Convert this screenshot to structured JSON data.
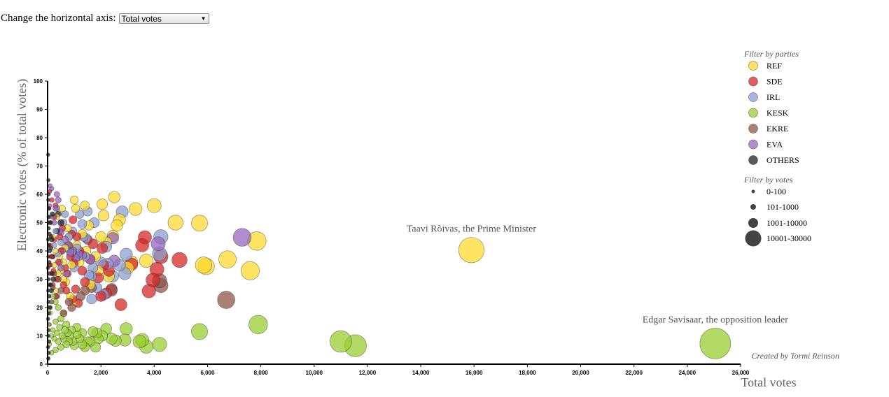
{
  "control": {
    "label": "Change the horizontal axis:",
    "selected": "Total votes"
  },
  "colors": {
    "REF": "#FFD92F",
    "SDE": "#D62728",
    "IRL": "#8C9DD1",
    "KESK": "#9ACD32",
    "EKRE": "#8C564B",
    "EVA": "#9467BD",
    "OTHERS": "#222222"
  },
  "chart_data": {
    "type": "scatter",
    "xlabel": "Total votes",
    "ylabel": "Electronic votes (% of total votes)",
    "xlim": [
      0,
      26000
    ],
    "ylim": [
      0,
      100
    ],
    "xticks": [
      0,
      2000,
      4000,
      6000,
      8000,
      10000,
      12000,
      14000,
      16000,
      18000,
      20000,
      22000,
      24000,
      26000
    ],
    "xtick_labels": [
      "0",
      "2,000",
      "4,000",
      "6,000",
      "8,000",
      "10,000",
      "12,000",
      "14,000",
      "16,000",
      "18,000",
      "20,000",
      "22,000",
      "24,000",
      "26,000"
    ],
    "yticks": [
      0,
      10,
      20,
      30,
      40,
      50,
      60,
      70,
      80,
      90,
      100
    ],
    "ytick_labels": [
      "0",
      "10",
      "20",
      "30",
      "40",
      "50",
      "60",
      "70",
      "80",
      "90",
      "100"
    ],
    "annotations": [
      {
        "text": "Taavi Rõivas, the Prime Minister",
        "x": 15900,
        "y": 40.3
      },
      {
        "text": "Edgar Savisaar, the opposition leader",
        "x": 25050,
        "y": 7.3
      }
    ],
    "credit": "Created by Tormi Reinson",
    "legend_parties_title": "Filter by parties",
    "parties": [
      "REF",
      "SDE",
      "IRL",
      "KESK",
      "EKRE",
      "EVA",
      "OTHERS"
    ],
    "legend_votes_title": "Filter by votes",
    "vote_ranges": [
      "0-100",
      "101-1000",
      "1001-10000",
      "10001-30000"
    ],
    "series": [
      {
        "name": "REF",
        "points": [
          [
            15900,
            40.3
          ],
          [
            7850,
            43.5
          ],
          [
            7600,
            33
          ],
          [
            6750,
            37
          ],
          [
            5950,
            34.5
          ],
          [
            5850,
            35
          ],
          [
            5700,
            49.8
          ],
          [
            4800,
            50
          ],
          [
            4000,
            56
          ],
          [
            3700,
            36.5
          ],
          [
            3300,
            54.8
          ],
          [
            3150,
            36
          ],
          [
            2600,
            49
          ],
          [
            2500,
            59
          ],
          [
            2050,
            56.5
          ],
          [
            2100,
            52.5
          ],
          [
            2000,
            45
          ],
          [
            2450,
            45.3
          ],
          [
            1550,
            49
          ],
          [
            1400,
            56
          ],
          [
            1050,
            55
          ],
          [
            1000,
            58
          ],
          [
            800,
            45
          ],
          [
            1800,
            38
          ],
          [
            2300,
            31
          ],
          [
            3000,
            34
          ],
          [
            900,
            35
          ],
          [
            700,
            29
          ],
          [
            600,
            30
          ],
          [
            1200,
            36
          ],
          [
            1600,
            28
          ],
          [
            500,
            33
          ],
          [
            400,
            32
          ],
          [
            300,
            40
          ],
          [
            1300,
            46
          ],
          [
            2700,
            51
          ],
          [
            450,
            38
          ],
          [
            650,
            41
          ],
          [
            850,
            24
          ],
          [
            350,
            52
          ],
          [
            550,
            55
          ],
          [
            750,
            48
          ],
          [
            1100,
            42
          ],
          [
            1450,
            40
          ],
          [
            1900,
            33
          ],
          [
            950,
            22
          ],
          [
            2200,
            43
          ],
          [
            300,
            26
          ],
          [
            250,
            35
          ],
          [
            600,
            36
          ],
          [
            200,
            45
          ]
        ]
      },
      {
        "name": "SDE",
        "points": [
          [
            4950,
            36.8
          ],
          [
            4250,
            38
          ],
          [
            4100,
            33.5
          ],
          [
            3950,
            29.7
          ],
          [
            3800,
            25.8
          ],
          [
            3650,
            44.8
          ],
          [
            3550,
            42
          ],
          [
            3150,
            35.3
          ],
          [
            2750,
            21
          ],
          [
            2400,
            26.5
          ],
          [
            2200,
            25
          ],
          [
            2100,
            35
          ],
          [
            2050,
            41
          ],
          [
            1900,
            30.5
          ],
          [
            1700,
            42.5
          ],
          [
            1400,
            29
          ],
          [
            1150,
            21.5
          ],
          [
            1050,
            26.5
          ],
          [
            950,
            23
          ],
          [
            1000,
            35.5
          ],
          [
            1500,
            44
          ],
          [
            1600,
            37
          ],
          [
            1300,
            33
          ],
          [
            1200,
            40
          ],
          [
            950,
            51
          ],
          [
            800,
            42
          ],
          [
            750,
            32
          ],
          [
            700,
            26
          ],
          [
            600,
            28
          ],
          [
            550,
            48
          ],
          [
            450,
            45
          ],
          [
            400,
            36
          ],
          [
            350,
            30
          ],
          [
            350,
            24
          ],
          [
            300,
            56
          ],
          [
            260,
            44
          ],
          [
            220,
            33
          ],
          [
            200,
            28
          ],
          [
            160,
            58
          ],
          [
            140,
            38
          ],
          [
            120,
            50
          ],
          [
            100,
            42
          ],
          [
            90,
            35
          ],
          [
            80,
            61
          ],
          [
            60,
            55
          ],
          [
            40,
            32
          ],
          [
            650,
            34
          ],
          [
            500,
            40
          ],
          [
            1100,
            45
          ],
          [
            2300,
            33
          ],
          [
            2000,
            24
          ],
          [
            850,
            38
          ],
          [
            900,
            46
          ],
          [
            250,
            52
          ]
        ]
      },
      {
        "name": "IRL",
        "points": [
          [
            4200,
            39
          ],
          [
            4250,
            45
          ],
          [
            2950,
            38.8
          ],
          [
            2900,
            32
          ],
          [
            2800,
            53.8
          ],
          [
            2700,
            35
          ],
          [
            2450,
            31
          ],
          [
            2250,
            35.5
          ],
          [
            2200,
            41.5
          ],
          [
            2100,
            24.5
          ],
          [
            1750,
            50
          ],
          [
            1700,
            34
          ],
          [
            1650,
            23
          ],
          [
            1550,
            31.5
          ],
          [
            1500,
            54
          ],
          [
            1450,
            44.5
          ],
          [
            1400,
            38
          ],
          [
            1350,
            45
          ],
          [
            1300,
            49.5
          ],
          [
            1200,
            53
          ],
          [
            1100,
            41
          ],
          [
            1000,
            34
          ],
          [
            950,
            47
          ],
          [
            900,
            39.5
          ],
          [
            850,
            40
          ],
          [
            700,
            41
          ],
          [
            650,
            53
          ],
          [
            500,
            43
          ],
          [
            450,
            36
          ],
          [
            400,
            39
          ],
          [
            300,
            47
          ],
          [
            350,
            55
          ],
          [
            250,
            42
          ],
          [
            1650,
            31
          ],
          [
            1850,
            27
          ],
          [
            2000,
            36
          ],
          [
            600,
            50
          ],
          [
            1150,
            38
          ],
          [
            800,
            45
          ]
        ]
      },
      {
        "name": "KESK",
        "points": [
          [
            25050,
            7.3
          ],
          [
            11550,
            6.5
          ],
          [
            11000,
            8
          ],
          [
            7900,
            14
          ],
          [
            5700,
            11.5
          ],
          [
            4200,
            7
          ],
          [
            3700,
            6.2
          ],
          [
            3550,
            8.5
          ],
          [
            3450,
            8
          ],
          [
            2950,
            12.5
          ],
          [
            2900,
            8.5
          ],
          [
            2550,
            8.3
          ],
          [
            2200,
            12.5
          ],
          [
            2050,
            10
          ],
          [
            1850,
            11
          ],
          [
            1800,
            6
          ],
          [
            1700,
            11.5
          ],
          [
            1600,
            8
          ],
          [
            1500,
            8
          ],
          [
            1400,
            6
          ],
          [
            1300,
            11
          ],
          [
            1200,
            9
          ],
          [
            1100,
            10.5
          ],
          [
            1000,
            6.5
          ],
          [
            950,
            8
          ],
          [
            900,
            12
          ],
          [
            850,
            10
          ],
          [
            800,
            8
          ],
          [
            750,
            11
          ],
          [
            700,
            7
          ],
          [
            650,
            12
          ],
          [
            600,
            9
          ],
          [
            550,
            10
          ],
          [
            500,
            6
          ],
          [
            450,
            13
          ],
          [
            400,
            8
          ],
          [
            350,
            11
          ],
          [
            300,
            15
          ],
          [
            250,
            9
          ],
          [
            200,
            12
          ],
          [
            150,
            10
          ],
          [
            100,
            18
          ],
          [
            80,
            7
          ],
          [
            60,
            14
          ],
          [
            40,
            19
          ],
          [
            30,
            2
          ],
          [
            600,
            18
          ],
          [
            500,
            16
          ],
          [
            400,
            20
          ],
          [
            300,
            22
          ],
          [
            200,
            24
          ],
          [
            1100,
            13
          ],
          [
            1900,
            9
          ],
          [
            700,
            14
          ],
          [
            300,
            5
          ],
          [
            150,
            4
          ],
          [
            1300,
            7
          ],
          [
            2400,
            9
          ]
        ]
      },
      {
        "name": "EKRE",
        "points": [
          [
            6700,
            22.7
          ],
          [
            4250,
            27.8
          ],
          [
            4200,
            29.5
          ],
          [
            2400,
            26
          ],
          [
            1650,
            27
          ],
          [
            1400,
            26
          ],
          [
            1250,
            24
          ],
          [
            900,
            20
          ],
          [
            800,
            22
          ],
          [
            600,
            18
          ],
          [
            500,
            26
          ],
          [
            400,
            30
          ],
          [
            300,
            24
          ],
          [
            250,
            32
          ],
          [
            200,
            27
          ],
          [
            150,
            22
          ],
          [
            100,
            20
          ]
        ]
      },
      {
        "name": "EVA",
        "points": [
          [
            7300,
            44.8
          ],
          [
            4150,
            42.5
          ],
          [
            2500,
            36.5
          ],
          [
            2450,
            44.5
          ],
          [
            1600,
            37
          ],
          [
            1300,
            38.5
          ],
          [
            1150,
            39
          ],
          [
            1050,
            37.5
          ],
          [
            950,
            40
          ],
          [
            850,
            39.5
          ],
          [
            750,
            42
          ],
          [
            650,
            44
          ],
          [
            550,
            40
          ],
          [
            500,
            46.5
          ],
          [
            450,
            47
          ],
          [
            400,
            58
          ],
          [
            350,
            60
          ],
          [
            300,
            55
          ],
          [
            250,
            50
          ],
          [
            200,
            52
          ],
          [
            150,
            62
          ],
          [
            100,
            63
          ],
          [
            80,
            56
          ],
          [
            60,
            52
          ],
          [
            500,
            34
          ],
          [
            700,
            32
          ]
        ]
      },
      {
        "name": "OTHERS",
        "points": [
          [
            20,
            74
          ],
          [
            30,
            65
          ],
          [
            40,
            60
          ],
          [
            25,
            58
          ],
          [
            50,
            55
          ],
          [
            35,
            52
          ],
          [
            60,
            50
          ],
          [
            45,
            48
          ],
          [
            70,
            46
          ],
          [
            20,
            44
          ],
          [
            55,
            42
          ],
          [
            80,
            40
          ],
          [
            30,
            38
          ],
          [
            65,
            36
          ],
          [
            15,
            34
          ],
          [
            90,
            32
          ],
          [
            40,
            30
          ],
          [
            75,
            28
          ],
          [
            25,
            26
          ],
          [
            60,
            24
          ],
          [
            35,
            22
          ],
          [
            85,
            20
          ],
          [
            50,
            18
          ],
          [
            20,
            16
          ],
          [
            70,
            14
          ],
          [
            40,
            12
          ],
          [
            30,
            10
          ],
          [
            60,
            8
          ],
          [
            20,
            6
          ],
          [
            45,
            4
          ],
          [
            30,
            2
          ],
          [
            100,
            35
          ],
          [
            120,
            41
          ],
          [
            110,
            28
          ],
          [
            130,
            45
          ],
          [
            90,
            50
          ],
          [
            150,
            38
          ],
          [
            170,
            32
          ],
          [
            140,
            26
          ],
          [
            160,
            44
          ],
          [
            200,
            38
          ],
          [
            220,
            30
          ],
          [
            180,
            53
          ],
          [
            400,
            53
          ],
          [
            500,
            50
          ],
          [
            350,
            47
          ]
        ]
      }
    ]
  }
}
